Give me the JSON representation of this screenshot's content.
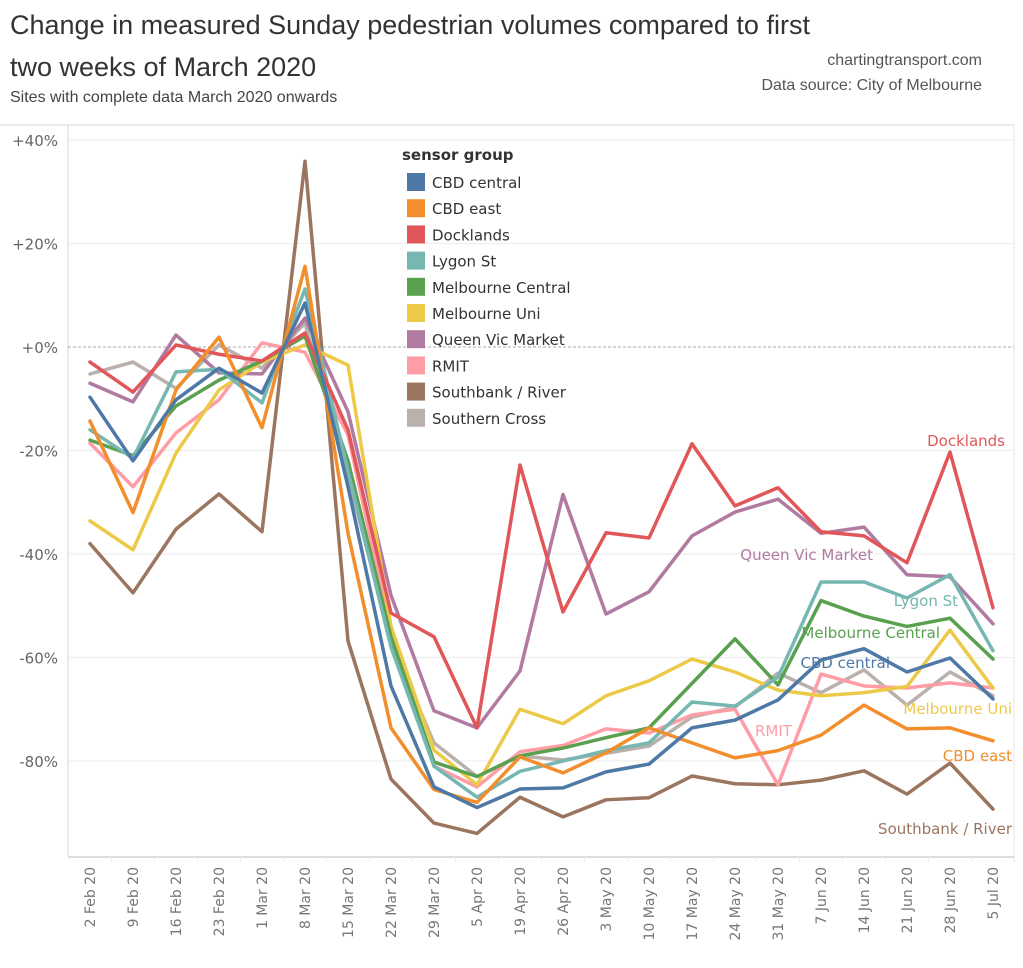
{
  "header": {
    "title_line1": "Change in measured Sunday pedestrian volumes compared to first",
    "title_line2": "two weeks of March 2020",
    "subtitle": "Sites with complete data March 2020 onwards",
    "credit": "chartingtransport.com",
    "source": "Data source: City of Melbourne"
  },
  "chart_data": {
    "type": "line",
    "title": "Change in measured Sunday pedestrian volumes compared to first two weeks of March 2020",
    "subtitle": "Sites with complete data March 2020 onwards",
    "xlabel": "",
    "ylabel": "",
    "ylim": [
      -100,
      40
    ],
    "yticks": [
      40,
      20,
      0,
      -20,
      -40,
      -60,
      -80
    ],
    "ytick_labels": [
      "+40%",
      "+20%",
      "+0%",
      "-20%",
      "-40%",
      "-60%",
      "-80%"
    ],
    "reference_line": 0,
    "grid": true,
    "legend_title": "sensor group",
    "legend_position": "top-center",
    "categories": [
      "2 Feb 20",
      "9 Feb 20",
      "16 Feb 20",
      "23 Feb 20",
      "1 Mar 20",
      "8 Mar 20",
      "15 Mar 20",
      "22 Mar 20",
      "29 Mar 20",
      "5 Apr 20",
      "19 Apr 20",
      "26 Apr 20",
      "3 May 20",
      "10 May 20",
      "17 May 20",
      "24 May 20",
      "31 May 20",
      "7 Jun 20",
      "14 Jun 20",
      "21 Jun 20",
      "28 Jun 20",
      "5 Jul 20"
    ],
    "series": [
      {
        "name": "CBD central",
        "color": "#4e79a7",
        "end_label": "CBD central",
        "values": [
          -9.7,
          -22,
          -10.2,
          -4.1,
          -8.9,
          8.5,
          -27,
          -65.5,
          -85,
          -89,
          -85.4,
          -85.2,
          -82.1,
          -80.6,
          -73.6,
          -72.1,
          -68.2,
          -60.5,
          -58.3,
          -62.8,
          -60.1,
          -68
        ]
      },
      {
        "name": "CBD east",
        "color": "#f28e2b",
        "end_label": "CBD east",
        "values": [
          -14.3,
          -32,
          -8.3,
          1.9,
          -15.6,
          15.6,
          -36,
          -73.6,
          -85.5,
          -88,
          -79.2,
          -82.3,
          -78.4,
          -73.6,
          -76.5,
          -79.4,
          -78,
          -75,
          -69.2,
          -73.8,
          -73.6,
          -76.1
        ]
      },
      {
        "name": "Docklands",
        "color": "#e15759",
        "end_label": "Docklands",
        "values": [
          -2.9,
          -8.7,
          0.4,
          -1.4,
          -2.7,
          2.7,
          -16,
          -51.4,
          -56,
          -73.6,
          -22.8,
          -51.2,
          -35.9,
          -36.9,
          -18.7,
          -30.7,
          -27.2,
          -35.7,
          -36.5,
          -41.7,
          -20.3,
          -50.4
        ]
      },
      {
        "name": "Lygon St",
        "color": "#76b7b2",
        "end_label": "Lygon St",
        "values": [
          -16,
          -21.5,
          -4.8,
          -4.3,
          -10.8,
          11.2,
          -24,
          -58,
          -81,
          -87,
          -82,
          -80,
          -78,
          -76.5,
          -68.6,
          -69.4,
          -63.8,
          -45.4,
          -45.4,
          -48.5,
          -44,
          -58.7
        ]
      },
      {
        "name": "Melbourne Central",
        "color": "#59a14f",
        "end_label": "Melbourne Central",
        "values": [
          -18,
          -21,
          -11.4,
          -6.4,
          -2.7,
          2.1,
          -22,
          -56,
          -80.2,
          -83,
          -79,
          -77.5,
          -75.5,
          -73.6,
          -65,
          -56.4,
          -65.3,
          -49,
          -52,
          -54,
          -52.4,
          -60.3
        ]
      },
      {
        "name": "Melbourne Uni",
        "color": "#edc948",
        "end_label": "Melbourne Uni",
        "values": [
          -33.6,
          -39.2,
          -20.5,
          -8.3,
          -2.9,
          0.4,
          -3.5,
          -54,
          -77.9,
          -84.6,
          -70,
          -72.8,
          -67.4,
          -64.5,
          -60.3,
          -62.8,
          -66.3,
          -67.4,
          -66.8,
          -65.6,
          -54.7,
          -65.9
        ]
      },
      {
        "name": "Queen Vic Market",
        "color": "#b07aa1",
        "end_label": "Queen Vic Market",
        "values": [
          -7,
          -10.6,
          2.3,
          -5,
          -5.2,
          5.6,
          -12.5,
          -48,
          -70.3,
          -73.6,
          -62.6,
          -28.5,
          -51.6,
          -47.3,
          -36.5,
          -31.9,
          -29.4,
          -36,
          -34.8,
          -44,
          -44.4,
          -53.5
        ]
      },
      {
        "name": "RMIT",
        "color": "#ff9da7",
        "end_label": "RMIT",
        "values": [
          -18.6,
          -27,
          -16.6,
          -10.2,
          0.8,
          -1,
          -17,
          -55,
          -81,
          -85,
          -78.2,
          -77,
          -73.8,
          -74.6,
          -71.1,
          -70,
          -84.6,
          -63.2,
          -65.5,
          -65.9,
          -64.9,
          -65.9
        ]
      },
      {
        "name": "Southbank / River",
        "color": "#9c755f",
        "end_label": "Southbank / River",
        "values": [
          -38,
          -47.5,
          -35.2,
          -28.4,
          -35.7,
          35.9,
          -56.8,
          -83.5,
          -92,
          -94,
          -87,
          -90.8,
          -87.5,
          -87.1,
          -82.9,
          -84.4,
          -84.6,
          -83.7,
          -81.9,
          -86.4,
          -80.4,
          -89.3
        ]
      },
      {
        "name": "Southern Cross",
        "color": "#bab0ac",
        "end_label": "",
        "values": [
          -5.2,
          -2.9,
          -8,
          0.4,
          -4.1,
          4.6,
          -25,
          -57,
          -76.5,
          -83,
          -79,
          -79.8,
          -78.5,
          -77.1,
          -71.5,
          -69.6,
          -63,
          -66.8,
          -62.4,
          -69.2,
          -62.8,
          -67.4
        ]
      }
    ]
  }
}
